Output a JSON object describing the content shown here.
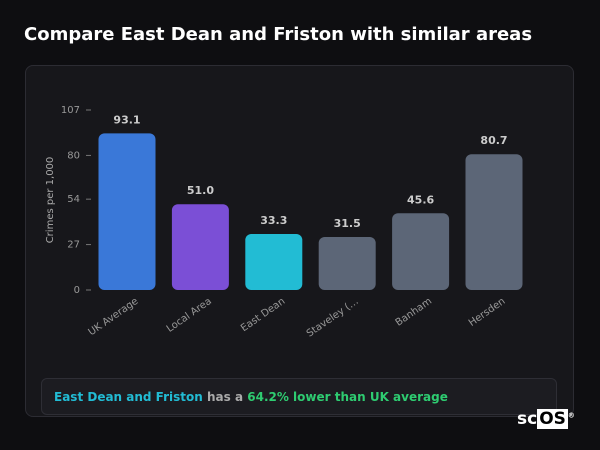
{
  "page_title": "Compare East Dean and Friston with similar areas",
  "chart_data": {
    "type": "bar",
    "y_label": "Crimes per 1,000",
    "categories": [
      "UK Average",
      "Local Area",
      "East Dean",
      "Staveley (…",
      "Banham",
      "Hersden"
    ],
    "values": [
      93.1,
      51.0,
      33.3,
      31.5,
      45.6,
      80.7
    ],
    "value_labels": [
      "93.1",
      "51.0",
      "33.3",
      "31.5",
      "45.6",
      "80.7"
    ],
    "colors": [
      "#3a78d8",
      "#7b4fd6",
      "#22bcd4",
      "#5c6677",
      "#5c6677",
      "#5c6677"
    ],
    "ylim": [
      0,
      107
    ],
    "yticks": [
      0,
      27,
      54,
      80,
      107
    ]
  },
  "summary": {
    "area": "East Dean and Friston",
    "middle": "has a",
    "highlight": "64.2% lower than UK average"
  },
  "logo": {
    "left": "sc",
    "right": "OS",
    "mark": "®"
  }
}
